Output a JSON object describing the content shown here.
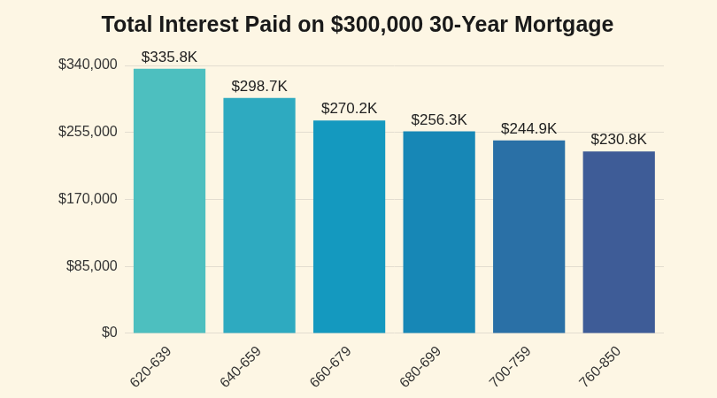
{
  "chart_data": {
    "type": "bar",
    "title": "Total Interest Paid on $300,000 30-Year Mortgage",
    "categories": [
      "620-639",
      "640-659",
      "660-679",
      "680-699",
      "700-759",
      "760-850"
    ],
    "values": [
      335800,
      298700,
      270200,
      256300,
      244900,
      230800
    ],
    "value_labels": [
      "$335.8K",
      "$298.7K",
      "$270.2K",
      "$256.3K",
      "$244.9K",
      "$230.8K"
    ],
    "colors": [
      "#4dbfbf",
      "#2eaac0",
      "#1499bf",
      "#1787b6",
      "#2a70a6",
      "#3e5c97"
    ],
    "ylim": [
      0,
      340000
    ],
    "yticks": [
      {
        "value": 0,
        "label": "$0"
      },
      {
        "value": 85000,
        "label": "$85,000"
      },
      {
        "value": 170000,
        "label": "$170,000"
      },
      {
        "value": 255000,
        "label": "$255,000"
      },
      {
        "value": 340000,
        "label": "$340,000"
      }
    ],
    "grid": true,
    "data_labels": true
  }
}
